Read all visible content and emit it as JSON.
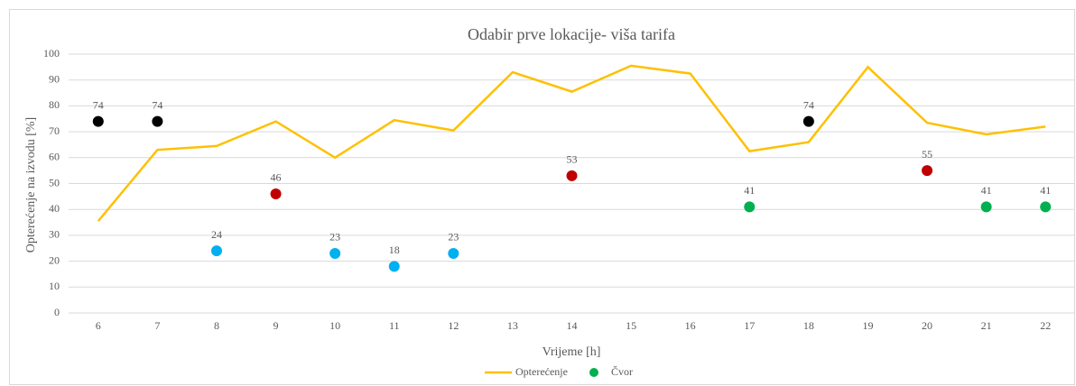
{
  "chart_data": {
    "type": "combo",
    "title": "Odabir prve lokacije- viša tarifa",
    "x_label": "Vrijeme [h]",
    "y_label": "Opterećenje na izvodu [%]",
    "categories": [
      "6",
      "7",
      "8",
      "9",
      "10",
      "11",
      "12",
      "13",
      "14",
      "15",
      "16",
      "17",
      "18",
      "19",
      "20",
      "21",
      "22"
    ],
    "ylim": [
      0,
      100
    ],
    "yticks": [
      0,
      10,
      20,
      30,
      40,
      50,
      60,
      70,
      80,
      90,
      100
    ],
    "grid": true,
    "legend": "bottom",
    "series": [
      {
        "name": "Opterećenje",
        "type": "line",
        "color": "#ffc000",
        "values": [
          35.5,
          63,
          64.5,
          74,
          60,
          74.5,
          70.5,
          93,
          85.5,
          95.5,
          92.5,
          62.5,
          66,
          95,
          73.5,
          69,
          72
        ]
      },
      {
        "name": "Čvor",
        "type": "scatter",
        "color": "#00b050",
        "values": [
          74,
          74,
          24,
          46,
          23,
          18,
          23,
          null,
          53,
          null,
          null,
          41,
          74,
          null,
          55,
          41,
          41
        ],
        "point_colors": [
          "#000000",
          "#000000",
          "#00b0f0",
          "#c00000",
          "#00b0f0",
          "#00b0f0",
          "#00b0f0",
          null,
          "#c00000",
          null,
          null,
          "#00b050",
          "#000000",
          null,
          "#c00000",
          "#00b050",
          "#00b050"
        ]
      }
    ]
  }
}
